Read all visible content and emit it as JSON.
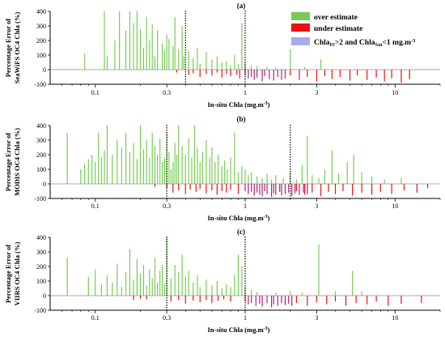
{
  "chart_data": {
    "type": "bar",
    "scale": "log-x",
    "xlim": [
      0.05,
      20
    ],
    "ylim": [
      -100,
      400
    ],
    "yticks": [
      -100,
      0,
      100,
      200,
      300,
      400
    ],
    "xticks": [
      0.1,
      0.3,
      1,
      3,
      10
    ],
    "xtick_labels": [
      "0.1",
      "0.3",
      "1",
      "3",
      "10"
    ],
    "colors": {
      "over": "#77cc55",
      "under": "#ee1111",
      "purple": "#aa2277",
      "legend_purple": "#aaaaee"
    },
    "legend": {
      "over_label": "over estimate",
      "under_label": "under estimate",
      "range_parts": [
        "Chla",
        "IS",
        ">2 and Chla",
        "Sat",
        "<1 mg.m",
        "-3"
      ]
    },
    "panels": [
      {
        "panel_label": "(a)",
        "ylabel_line1": "Percentage Error of",
        "ylabel_line2": "SeaWiFS OC4 Chla (%)",
        "xlabel": "In-situ Chla (mg.m",
        "xlabel_sup": "-3",
        "xlabel_end": ")",
        "markers": [
          0.4,
          1.0
        ],
        "over": [
          [
            0.085,
            110
          ],
          [
            0.115,
            400
          ],
          [
            0.12,
            90
          ],
          [
            0.135,
            200
          ],
          [
            0.145,
            400
          ],
          [
            0.16,
            270
          ],
          [
            0.17,
            400
          ],
          [
            0.18,
            320
          ],
          [
            0.19,
            400
          ],
          [
            0.2,
            280
          ],
          [
            0.21,
            150
          ],
          [
            0.22,
            360
          ],
          [
            0.23,
            200
          ],
          [
            0.24,
            310
          ],
          [
            0.25,
            90
          ],
          [
            0.26,
            270
          ],
          [
            0.28,
            180
          ],
          [
            0.29,
            130
          ],
          [
            0.3,
            240
          ],
          [
            0.31,
            210
          ],
          [
            0.33,
            160
          ],
          [
            0.34,
            360
          ],
          [
            0.36,
            140
          ],
          [
            0.38,
            300
          ],
          [
            0.39,
            90
          ],
          [
            0.42,
            130
          ],
          [
            0.45,
            80
          ],
          [
            0.48,
            150
          ],
          [
            0.5,
            40
          ],
          [
            0.55,
            120
          ],
          [
            0.6,
            70
          ],
          [
            0.65,
            90
          ],
          [
            0.7,
            50
          ],
          [
            0.75,
            60
          ],
          [
            0.8,
            30
          ],
          [
            0.85,
            100
          ],
          [
            0.9,
            40
          ],
          [
            0.95,
            320
          ],
          [
            1.0,
            60
          ],
          [
            1.1,
            30
          ],
          [
            1.2,
            25
          ],
          [
            1.4,
            20
          ],
          [
            1.6,
            15
          ],
          [
            2.0,
            140
          ],
          [
            2.5,
            20
          ],
          [
            3.2,
            70
          ]
        ],
        "under": [
          [
            0.35,
            -20
          ],
          [
            0.42,
            -35
          ],
          [
            0.45,
            -25
          ],
          [
            0.5,
            -50
          ],
          [
            0.55,
            -30
          ],
          [
            0.6,
            -40
          ],
          [
            0.65,
            -20
          ],
          [
            0.7,
            -55
          ],
          [
            0.75,
            -30
          ],
          [
            0.8,
            -45
          ],
          [
            0.88,
            -35
          ],
          [
            0.92,
            -60
          ],
          [
            2.0,
            -40
          ],
          [
            2.3,
            -70
          ],
          [
            2.6,
            -50
          ],
          [
            3.0,
            -80
          ],
          [
            3.4,
            -45
          ],
          [
            3.8,
            -65
          ],
          [
            4.3,
            -50
          ],
          [
            5.0,
            -75
          ],
          [
            5.6,
            -40
          ],
          [
            6.5,
            -70
          ],
          [
            7.5,
            -55
          ],
          [
            8.5,
            -80
          ],
          [
            9.5,
            -60
          ],
          [
            11.0,
            -90
          ],
          [
            12.5,
            -65
          ]
        ],
        "purple": [
          [
            1.0,
            -40
          ],
          [
            1.05,
            -60
          ],
          [
            1.1,
            -50
          ],
          [
            1.15,
            -70
          ],
          [
            1.2,
            -55
          ],
          [
            1.3,
            -80
          ],
          [
            1.35,
            -45
          ],
          [
            1.45,
            -65
          ],
          [
            1.55,
            -75
          ],
          [
            1.65,
            -50
          ],
          [
            1.75,
            -70
          ],
          [
            1.85,
            -60
          ]
        ]
      },
      {
        "panel_label": "(b)",
        "ylabel_line1": "Percentage Error of",
        "ylabel_line2": "MODIS OC4 Chla (%)",
        "xlabel": "In-situ Chla (mg.m",
        "xlabel_sup": "-3",
        "xlabel_end": ")",
        "markers": [
          0.3,
          2.0
        ],
        "over": [
          [
            0.065,
            350
          ],
          [
            0.08,
            100
          ],
          [
            0.085,
            140
          ],
          [
            0.09,
            170
          ],
          [
            0.095,
            200
          ],
          [
            0.1,
            150
          ],
          [
            0.105,
            350
          ],
          [
            0.11,
            180
          ],
          [
            0.115,
            230
          ],
          [
            0.12,
            400
          ],
          [
            0.13,
            200
          ],
          [
            0.14,
            300
          ],
          [
            0.15,
            250
          ],
          [
            0.16,
            350
          ],
          [
            0.17,
            220
          ],
          [
            0.18,
            280
          ],
          [
            0.19,
            170
          ],
          [
            0.2,
            400
          ],
          [
            0.21,
            240
          ],
          [
            0.22,
            300
          ],
          [
            0.23,
            180
          ],
          [
            0.24,
            350
          ],
          [
            0.25,
            260
          ],
          [
            0.26,
            200
          ],
          [
            0.27,
            310
          ],
          [
            0.28,
            150
          ],
          [
            0.29,
            180
          ],
          [
            0.3,
            350
          ],
          [
            0.31,
            220
          ],
          [
            0.32,
            100
          ],
          [
            0.33,
            150
          ],
          [
            0.34,
            280
          ],
          [
            0.35,
            200
          ],
          [
            0.36,
            400
          ],
          [
            0.38,
            260
          ],
          [
            0.4,
            200
          ],
          [
            0.42,
            310
          ],
          [
            0.44,
            180
          ],
          [
            0.46,
            400
          ],
          [
            0.48,
            250
          ],
          [
            0.5,
            150
          ],
          [
            0.52,
            220
          ],
          [
            0.55,
            300
          ],
          [
            0.58,
            180
          ],
          [
            0.6,
            250
          ],
          [
            0.63,
            150
          ],
          [
            0.66,
            200
          ],
          [
            0.7,
            120
          ],
          [
            0.73,
            160
          ],
          [
            0.76,
            100
          ],
          [
            0.8,
            180
          ],
          [
            0.85,
            350
          ],
          [
            0.9,
            80
          ],
          [
            0.95,
            120
          ],
          [
            1.0,
            100
          ],
          [
            1.05,
            60
          ],
          [
            1.1,
            80
          ],
          [
            1.2,
            50
          ],
          [
            1.3,
            40
          ],
          [
            1.4,
            70
          ],
          [
            1.5,
            30
          ],
          [
            1.6,
            60
          ],
          [
            1.8,
            40
          ],
          [
            2.0,
            80
          ],
          [
            2.2,
            30
          ],
          [
            2.4,
            130
          ],
          [
            2.6,
            330
          ],
          [
            2.8,
            60
          ],
          [
            3.1,
            40
          ],
          [
            3.4,
            100
          ],
          [
            3.8,
            230
          ],
          [
            4.2,
            70
          ],
          [
            4.8,
            150
          ],
          [
            5.3,
            200
          ],
          [
            6.0,
            80
          ],
          [
            7.0,
            50
          ],
          [
            8.5,
            30
          ],
          [
            11.0,
            40
          ]
        ],
        "under": [
          [
            0.25,
            -20
          ],
          [
            0.3,
            -30
          ],
          [
            0.33,
            -60
          ],
          [
            0.36,
            -45
          ],
          [
            0.4,
            -70
          ],
          [
            0.43,
            -40
          ],
          [
            0.47,
            -55
          ],
          [
            0.5,
            -35
          ],
          [
            0.55,
            -65
          ],
          [
            0.6,
            -45
          ],
          [
            0.65,
            -75
          ],
          [
            0.7,
            -50
          ],
          [
            0.75,
            -60
          ],
          [
            0.8,
            -40
          ],
          [
            0.9,
            -70
          ],
          [
            2.2,
            -50
          ],
          [
            2.5,
            -75
          ],
          [
            2.8,
            -60
          ],
          [
            3.2,
            -85
          ],
          [
            3.6,
            -55
          ],
          [
            4.0,
            -70
          ],
          [
            4.5,
            -50
          ],
          [
            5.2,
            -80
          ],
          [
            6.0,
            -60
          ],
          [
            7.0,
            -75
          ],
          [
            8.0,
            -55
          ],
          [
            9.5,
            -70
          ],
          [
            11.5,
            -45
          ],
          [
            14.0,
            -60
          ],
          [
            16.5,
            -30
          ]
        ],
        "purple": [
          [
            1.0,
            -50
          ],
          [
            1.05,
            -70
          ],
          [
            1.1,
            -55
          ],
          [
            1.15,
            -80
          ],
          [
            1.2,
            -60
          ],
          [
            1.25,
            -75
          ],
          [
            1.3,
            -85
          ],
          [
            1.35,
            -50
          ],
          [
            1.4,
            -70
          ],
          [
            1.5,
            -90
          ],
          [
            1.55,
            -65
          ],
          [
            1.6,
            -75
          ],
          [
            1.7,
            -55
          ],
          [
            1.75,
            -80
          ],
          [
            1.85,
            -70
          ],
          [
            1.95,
            -60
          ],
          [
            2.05,
            -85
          ],
          [
            2.15,
            -65
          ],
          [
            2.3,
            -75
          ],
          [
            2.45,
            -60
          ],
          [
            2.6,
            -70
          ]
        ]
      },
      {
        "panel_label": "(c)",
        "ylabel_line1": "Percentage Error of",
        "ylabel_line2": "VIIRS OC4 Chla (%)",
        "xlabel": "In-situ Chla (mg.m",
        "xlabel_sup": "-3",
        "xlabel_end": ")",
        "markers": [
          0.3,
          1.0
        ],
        "over": [
          [
            0.065,
            260
          ],
          [
            0.09,
            130
          ],
          [
            0.1,
            180
          ],
          [
            0.11,
            80
          ],
          [
            0.12,
            140
          ],
          [
            0.13,
            90
          ],
          [
            0.14,
            220
          ],
          [
            0.15,
            60
          ],
          [
            0.16,
            160
          ],
          [
            0.17,
            320
          ],
          [
            0.18,
            110
          ],
          [
            0.19,
            250
          ],
          [
            0.2,
            150
          ],
          [
            0.21,
            210
          ],
          [
            0.22,
            70
          ],
          [
            0.23,
            180
          ],
          [
            0.24,
            120
          ],
          [
            0.25,
            260
          ],
          [
            0.26,
            90
          ],
          [
            0.27,
            170
          ],
          [
            0.28,
            210
          ],
          [
            0.29,
            80
          ],
          [
            0.3,
            400
          ],
          [
            0.32,
            120
          ],
          [
            0.34,
            210
          ],
          [
            0.36,
            160
          ],
          [
            0.38,
            280
          ],
          [
            0.4,
            130
          ],
          [
            0.42,
            170
          ],
          [
            0.45,
            90
          ],
          [
            0.48,
            140
          ],
          [
            0.5,
            60
          ],
          [
            0.55,
            110
          ],
          [
            0.6,
            70
          ],
          [
            0.65,
            100
          ],
          [
            0.7,
            50
          ],
          [
            0.75,
            80
          ],
          [
            0.8,
            60
          ],
          [
            0.85,
            140
          ],
          [
            0.9,
            280
          ],
          [
            0.95,
            200
          ],
          [
            1.0,
            60
          ],
          [
            1.1,
            40
          ],
          [
            1.2,
            25
          ],
          [
            1.6,
            20
          ],
          [
            2.0,
            30
          ],
          [
            2.4,
            20
          ],
          [
            3.1,
            350
          ],
          [
            4.0,
            30
          ],
          [
            5.2,
            170
          ],
          [
            6.0,
            30
          ]
        ],
        "under": [
          [
            0.18,
            -30
          ],
          [
            0.2,
            -20
          ],
          [
            0.22,
            -25
          ],
          [
            0.32,
            -40
          ],
          [
            0.36,
            -30
          ],
          [
            0.4,
            -55
          ],
          [
            0.45,
            -35
          ],
          [
            0.5,
            -45
          ],
          [
            0.55,
            -30
          ],
          [
            0.6,
            -50
          ],
          [
            0.66,
            -35
          ],
          [
            0.72,
            -25
          ],
          [
            0.8,
            -40
          ],
          [
            2.2,
            -50
          ],
          [
            2.6,
            -70
          ],
          [
            3.0,
            -45
          ],
          [
            3.5,
            -60
          ],
          [
            4.0,
            -40
          ],
          [
            4.7,
            -70
          ],
          [
            5.5,
            -50
          ],
          [
            6.5,
            -60
          ],
          [
            7.5,
            -40
          ],
          [
            9.0,
            -70
          ],
          [
            11.0,
            -55
          ],
          [
            15.0,
            -50
          ]
        ],
        "purple": [
          [
            1.0,
            -40
          ],
          [
            1.05,
            -60
          ],
          [
            1.1,
            -50
          ],
          [
            1.18,
            -70
          ],
          [
            1.25,
            -55
          ],
          [
            1.3,
            -75
          ],
          [
            1.4,
            -50
          ],
          [
            1.5,
            -80
          ],
          [
            1.55,
            -60
          ],
          [
            1.65,
            -70
          ],
          [
            1.75,
            -50
          ],
          [
            1.85,
            -65
          ],
          [
            1.95,
            -55
          ],
          [
            2.05,
            -70
          ]
        ]
      }
    ]
  }
}
